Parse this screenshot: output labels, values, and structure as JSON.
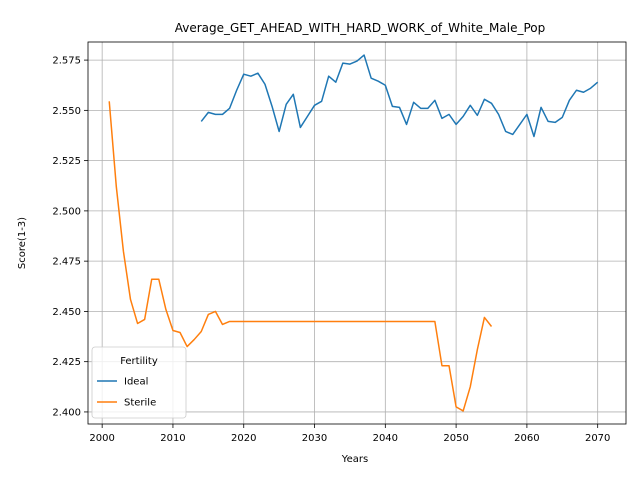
{
  "chart_data": {
    "type": "line",
    "title": "Average_GET_AHEAD_WITH_HARD_WORK_of_White_Male_Pop",
    "xlabel": "Years",
    "ylabel": "Score(1-3)",
    "xlim": [
      1998,
      2074
    ],
    "ylim": [
      2.394,
      2.584
    ],
    "xticks": [
      2000,
      2010,
      2020,
      2030,
      2040,
      2050,
      2060,
      2070
    ],
    "yticks": [
      2.4,
      2.425,
      2.45,
      2.475,
      2.5,
      2.525,
      2.55,
      2.575
    ],
    "ytick_labels": [
      "2.400",
      "2.425",
      "2.450",
      "2.475",
      "2.500",
      "2.525",
      "2.550",
      "2.575"
    ],
    "grid": true,
    "legend": {
      "title": "Fertility",
      "placement": "lower-left"
    },
    "series": [
      {
        "name": "Ideal",
        "color": "#1f77b4",
        "x": [
          2014,
          2015,
          2016,
          2017,
          2018,
          2019,
          2020,
          2021,
          2022,
          2023,
          2024,
          2025,
          2026,
          2027,
          2028,
          2029,
          2030,
          2031,
          2032,
          2033,
          2034,
          2035,
          2036,
          2037,
          2038,
          2039,
          2040,
          2041,
          2042,
          2043,
          2044,
          2045,
          2046,
          2047,
          2048,
          2049,
          2050,
          2051,
          2052,
          2053,
          2054,
          2055,
          2056,
          2057,
          2058,
          2059,
          2060,
          2061,
          2062,
          2063,
          2064,
          2065,
          2066,
          2067,
          2068,
          2069,
          2070
        ],
        "y": [
          2.5445,
          2.549,
          2.548,
          2.548,
          2.551,
          2.56,
          2.568,
          2.567,
          2.5685,
          2.563,
          2.552,
          2.5395,
          2.553,
          2.558,
          2.5415,
          2.547,
          2.5525,
          2.5545,
          2.567,
          2.564,
          2.5735,
          2.573,
          2.5745,
          2.5775,
          2.566,
          2.5645,
          2.5625,
          2.552,
          2.5515,
          2.543,
          2.554,
          2.551,
          2.551,
          2.555,
          2.546,
          2.548,
          2.543,
          2.547,
          2.5525,
          2.5475,
          2.5555,
          2.5535,
          2.548,
          2.5395,
          2.538,
          2.543,
          2.548,
          2.537,
          2.5515,
          2.5445,
          2.544,
          2.5465,
          2.555,
          2.56,
          2.559,
          2.561,
          2.564
        ]
      },
      {
        "name": "Sterile",
        "color": "#ff7f0e",
        "x": [
          2001,
          2002,
          2003,
          2004,
          2005,
          2006,
          2007,
          2008,
          2009,
          2010,
          2011,
          2012,
          2013,
          2014,
          2015,
          2016,
          2017,
          2018,
          2019,
          2020,
          2021,
          2022,
          2023,
          2024,
          2025,
          2026,
          2027,
          2028,
          2029,
          2030,
          2031,
          2032,
          2033,
          2034,
          2035,
          2036,
          2037,
          2038,
          2039,
          2040,
          2041,
          2042,
          2043,
          2044,
          2045,
          2046,
          2047,
          2048,
          2049,
          2050,
          2051,
          2052,
          2053,
          2054,
          2055
        ],
        "y": [
          2.5545,
          2.512,
          2.48,
          2.456,
          2.444,
          2.446,
          2.466,
          2.466,
          2.451,
          2.4405,
          2.4395,
          2.4325,
          2.436,
          2.44,
          2.4485,
          2.45,
          2.4435,
          2.445,
          2.445,
          2.445,
          2.445,
          2.445,
          2.445,
          2.445,
          2.445,
          2.445,
          2.445,
          2.445,
          2.445,
          2.445,
          2.445,
          2.445,
          2.445,
          2.445,
          2.445,
          2.445,
          2.445,
          2.445,
          2.445,
          2.445,
          2.445,
          2.445,
          2.445,
          2.445,
          2.445,
          2.445,
          2.445,
          2.423,
          2.423,
          2.4025,
          2.4005,
          2.4125,
          2.431,
          2.447,
          2.4425
        ]
      }
    ]
  }
}
